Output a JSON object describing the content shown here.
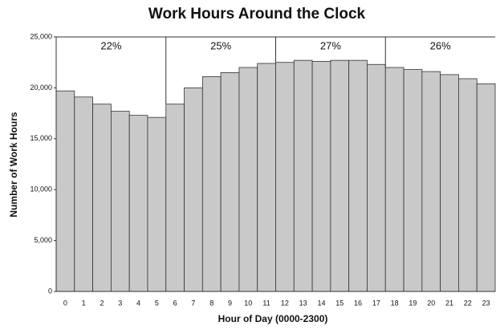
{
  "chart_data": {
    "type": "bar",
    "title": "Work Hours Around the Clock",
    "x_label": "Hour of Day (0000-2300)",
    "y_label": "Number of Work Hours",
    "categories": [
      "0",
      "1",
      "2",
      "3",
      "4",
      "5",
      "6",
      "7",
      "8",
      "9",
      "10",
      "11",
      "12",
      "13",
      "14",
      "15",
      "16",
      "17",
      "18",
      "19",
      "20",
      "21",
      "22",
      "23"
    ],
    "values": [
      19700,
      19100,
      18400,
      17700,
      17300,
      17100,
      18400,
      20000,
      21100,
      21500,
      22000,
      22400,
      22500,
      22700,
      22600,
      22700,
      22700,
      22300,
      22000,
      21800,
      21600,
      21300,
      20900,
      20400
    ],
    "color": "#c9c9c9",
    "annotations": [
      "22%",
      "25%",
      "27%",
      "26%"
    ],
    "ylim": [
      0,
      25000
    ],
    "yticks": [
      0,
      {
        "value": 5000,
        "label": "5,000"
      },
      {
        "value": 10000,
        "label": "10,000"
      },
      {
        "value": 15000,
        "label": "15,000"
      },
      {
        "value": 20000,
        "label": "20,000"
      },
      {
        "value": 25000,
        "label": "25,000"
      }
    ],
    "grid": false
  }
}
